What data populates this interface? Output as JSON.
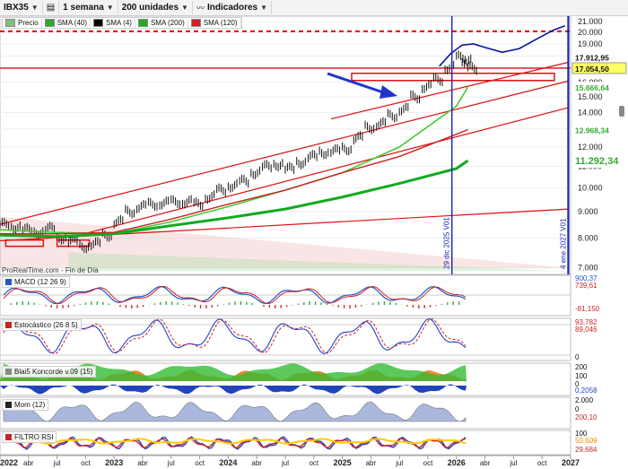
{
  "toolbar": {
    "symbol": "IBX35",
    "period": "1 semana",
    "units": "200 unidades",
    "indicators": "Indicadores"
  },
  "legend": [
    {
      "label": "Precio",
      "color": "#7ec07e"
    },
    {
      "label": "SMA (40)",
      "color": "#2ea82e"
    },
    {
      "label": "SMA (4)",
      "color": "#000000"
    },
    {
      "label": "SMA (200)",
      "color": "#22aa22"
    },
    {
      "label": "SMA (120)",
      "color": "#cc2222"
    }
  ],
  "credit": "ProRealTime.com - Fin de Día",
  "panes": {
    "macd": {
      "label": "MACD (12 26 9)",
      "values": [
        "900,37",
        "739,61",
        "-81,150"
      ]
    },
    "stoch": {
      "label": "Estocástico (26 8 5)",
      "values": [
        "93,782",
        "89,046",
        "0"
      ]
    },
    "blai5": {
      "label": "Blai5 Koncorde v.09 (15)",
      "values": [
        "200",
        "100",
        "0",
        "0,2058"
      ]
    },
    "mom": {
      "label": "Mom (12)",
      "values": [
        "2.000",
        "0",
        "200,10"
      ]
    },
    "rsi": {
      "label": "FILTRO RSI",
      "values": [
        "100",
        "50,609",
        "29,684"
      ]
    }
  },
  "colors": {
    "price_up": "#111111",
    "blue_projection": "#0a12a8",
    "red_line": "#dd1111",
    "green_sma": "#22bb22",
    "light_green": "#66dd44",
    "accent_blue_arrow": "#2233cc"
  },
  "chart_data": {
    "type": "line",
    "title": "IBX35",
    "xlabel": "",
    "ylabel": "",
    "x_ticks": [
      "2022",
      "abr",
      "jul",
      "oct",
      "2023",
      "abr",
      "jul",
      "oct",
      "2024",
      "abr",
      "jul",
      "oct",
      "2025",
      "abr",
      "jul",
      "oct",
      "2026",
      "abr",
      "jul",
      "oct",
      "2027"
    ],
    "y_ticks": [
      "7.000",
      "8.000",
      "9.000",
      "10.000",
      "11.000",
      "12.000",
      "13.000",
      "14.000",
      "15.000",
      "16.000",
      "17.000",
      "18.000",
      "19.000",
      "20.000",
      "21.000"
    ],
    "y_scale": "log",
    "ylim": [
      6800,
      21500
    ],
    "xlim": [
      2022.0,
      2027.0
    ],
    "price_labels": [
      {
        "value": 17912.95,
        "text": "17.912,95",
        "bg": "#ffffff",
        "fg": "#111111"
      },
      {
        "value": 17054.5,
        "text": "17.054,50",
        "bg": "#ffff66",
        "fg": "#111111"
      },
      {
        "value": 15666.64,
        "text": "15.666,64",
        "bg": "#ffffff",
        "fg": "#33aa33"
      },
      {
        "value": 12968.34,
        "text": "12.968,34",
        "bg": "#ffffff",
        "fg": "#33aa33"
      },
      {
        "value": 11292.34,
        "text": "11.292,34",
        "bg": "#ffffff",
        "fg": "#33aa33",
        "large": true
      }
    ],
    "vertical_markers": [
      {
        "x": 2025.96,
        "label": "29 dic 2025 V01"
      },
      {
        "x": 2026.98,
        "label": "4 ene 2027 V01"
      }
    ],
    "series": [
      {
        "name": "Precio",
        "type": "bars",
        "x": [
          2022.0,
          2022.1,
          2022.2,
          2022.3,
          2022.4,
          2022.5,
          2022.6,
          2022.7,
          2022.8,
          2022.9,
          2023.0,
          2023.1,
          2023.2,
          2023.3,
          2023.4,
          2023.5,
          2023.6,
          2023.7,
          2023.8,
          2023.9,
          2024.0,
          2024.1,
          2024.2,
          2024.3,
          2024.4,
          2024.5,
          2024.6,
          2024.7,
          2024.8,
          2024.9,
          2025.0,
          2025.1,
          2025.2,
          2025.3,
          2025.4,
          2025.5,
          2025.6,
          2025.7,
          2025.8,
          2025.9,
          2026.0,
          2026.05,
          2026.1
        ],
        "y": [
          8500,
          8400,
          8300,
          8200,
          8350,
          8000,
          7900,
          7700,
          7800,
          8100,
          8600,
          9000,
          9200,
          9300,
          9350,
          9400,
          9400,
          9300,
          9600,
          9900,
          10100,
          10300,
          10700,
          11000,
          11100,
          10900,
          11200,
          11500,
          11700,
          11800,
          11900,
          12500,
          13100,
          13300,
          13800,
          14200,
          15000,
          15700,
          16200,
          17100,
          17900,
          17600,
          17050
        ]
      },
      {
        "name": "SMA (40)",
        "x": [
          2022.0,
          2022.5,
          2023.0,
          2023.5,
          2024.0,
          2024.5,
          2025.0,
          2025.5,
          2026.0,
          2026.1
        ],
        "y": [
          8300,
          8200,
          8150,
          8600,
          9200,
          9900,
          10700,
          12000,
          14400,
          15666
        ]
      },
      {
        "name": "SMA (200)",
        "x": [
          2022.0,
          2022.5,
          2023.0,
          2023.5,
          2024.0,
          2024.5,
          2025.0,
          2025.5,
          2026.0,
          2026.1
        ],
        "y": [
          8100,
          8050,
          8150,
          8450,
          8750,
          9100,
          9600,
          10200,
          10900,
          11292
        ]
      },
      {
        "name": "SMA (120)",
        "x": [
          2022.0,
          2022.5,
          2023.0,
          2023.5,
          2024.0,
          2024.5,
          2025.0,
          2025.5,
          2026.0,
          2026.1
        ],
        "y": [
          8150,
          8150,
          8200,
          8700,
          9300,
          9900,
          10700,
          11500,
          12700,
          12968
        ]
      },
      {
        "name": "Proyección",
        "x": [
          2025.85,
          2025.95,
          2026.05,
          2026.15,
          2026.25,
          2026.4,
          2026.55,
          2026.7,
          2026.85,
          2026.95
        ],
        "y": [
          17200,
          18200,
          18900,
          19000,
          18700,
          18300,
          18600,
          19400,
          20200,
          20600
        ]
      }
    ],
    "horizontal_lines": [
      {
        "value": 20100,
        "style": "dashed",
        "color": "#dd1111"
      },
      {
        "value": 17054.5,
        "style": "solid",
        "color": "#dd1111"
      }
    ],
    "trend_lines": [
      {
        "from": [
          2022.0,
          8500
        ],
        "to": [
          2026.98,
          16100
        ]
      },
      {
        "from": [
          2022.6,
          8000
        ],
        "to": [
          2026.98,
          14300
        ]
      },
      {
        "from": [
          2022.0,
          7900
        ],
        "to": [
          2026.98,
          9100
        ]
      },
      {
        "from": [
          2024.9,
          13600
        ],
        "to": [
          2026.98,
          17500
        ]
      }
    ]
  }
}
